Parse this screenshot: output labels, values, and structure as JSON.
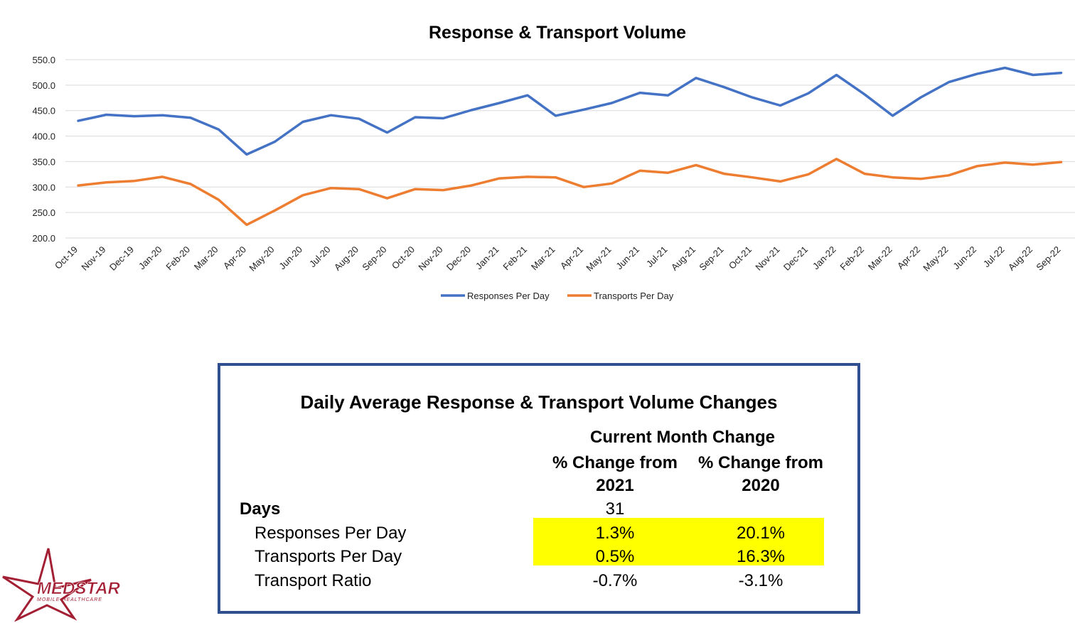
{
  "chart_data": {
    "type": "line",
    "title": "Response & Transport Volume",
    "categories": [
      "Oct-19",
      "Nov-19",
      "Dec-19",
      "Jan-20",
      "Feb-20",
      "Mar-20",
      "Apr-20",
      "May-20",
      "Jun-20",
      "Jul-20",
      "Aug-20",
      "Sep-20",
      "Oct-20",
      "Nov-20",
      "Dec-20",
      "Jan-21",
      "Feb-21",
      "Mar-21",
      "Apr-21",
      "May-21",
      "Jun-21",
      "Jul-21",
      "Aug-21",
      "Sep-21",
      "Oct-21",
      "Nov-21",
      "Dec-21",
      "Jan-22",
      "Feb-22",
      "Mar-22",
      "Apr-22",
      "May-22",
      "Jun-22",
      "Jul-22",
      "Aug-22",
      "Sep-22"
    ],
    "series": [
      {
        "name": "Responses Per Day",
        "color": "#4472c4",
        "values": [
          430,
          442,
          439,
          441,
          436,
          413,
          364,
          389,
          428,
          441,
          434,
          407,
          437,
          435,
          451,
          465,
          480,
          440,
          452,
          465,
          485,
          480,
          514,
          496,
          476,
          460,
          484,
          520,
          482,
          440,
          476,
          506,
          522,
          534,
          520,
          524
        ]
      },
      {
        "name": "Transports Per Day",
        "color": "#ed7d31",
        "values": [
          303,
          309,
          312,
          320,
          306,
          275,
          226,
          254,
          284,
          298,
          296,
          278,
          296,
          294,
          303,
          317,
          320,
          319,
          300,
          307,
          332,
          328,
          343,
          326,
          319,
          311,
          325,
          355,
          326,
          319,
          316,
          323,
          341,
          348,
          344,
          349
        ]
      }
    ],
    "ylim": [
      200,
      550
    ],
    "yticks": [
      "200.0",
      "250.0",
      "300.0",
      "350.0",
      "400.0",
      "450.0",
      "500.0",
      "550.0"
    ],
    "grid": true,
    "legend_position": "bottom"
  },
  "summary": {
    "title": "Daily Average Response & Transport Volume Changes",
    "header_current": "Current Month Change",
    "col1_line1": "% Change from",
    "col1_line2": "2021",
    "col2_line1": "% Change from",
    "col2_line2": "2020",
    "highlight_color": "#ffff00",
    "rows": [
      {
        "label": "Days",
        "v1": "31",
        "v2": ""
      },
      {
        "label": "Responses Per Day",
        "v1": "1.3%",
        "v2": "20.1%"
      },
      {
        "label": "Transports Per Day",
        "v1": "0.5%",
        "v2": "16.3%"
      },
      {
        "label": "Transport Ratio",
        "v1": "-0.7%",
        "v2": "-3.1%"
      }
    ]
  },
  "logo": {
    "name": "MEDSTAR",
    "tagline": "MOBILE HEALTHCARE",
    "color": "#a31f34"
  }
}
